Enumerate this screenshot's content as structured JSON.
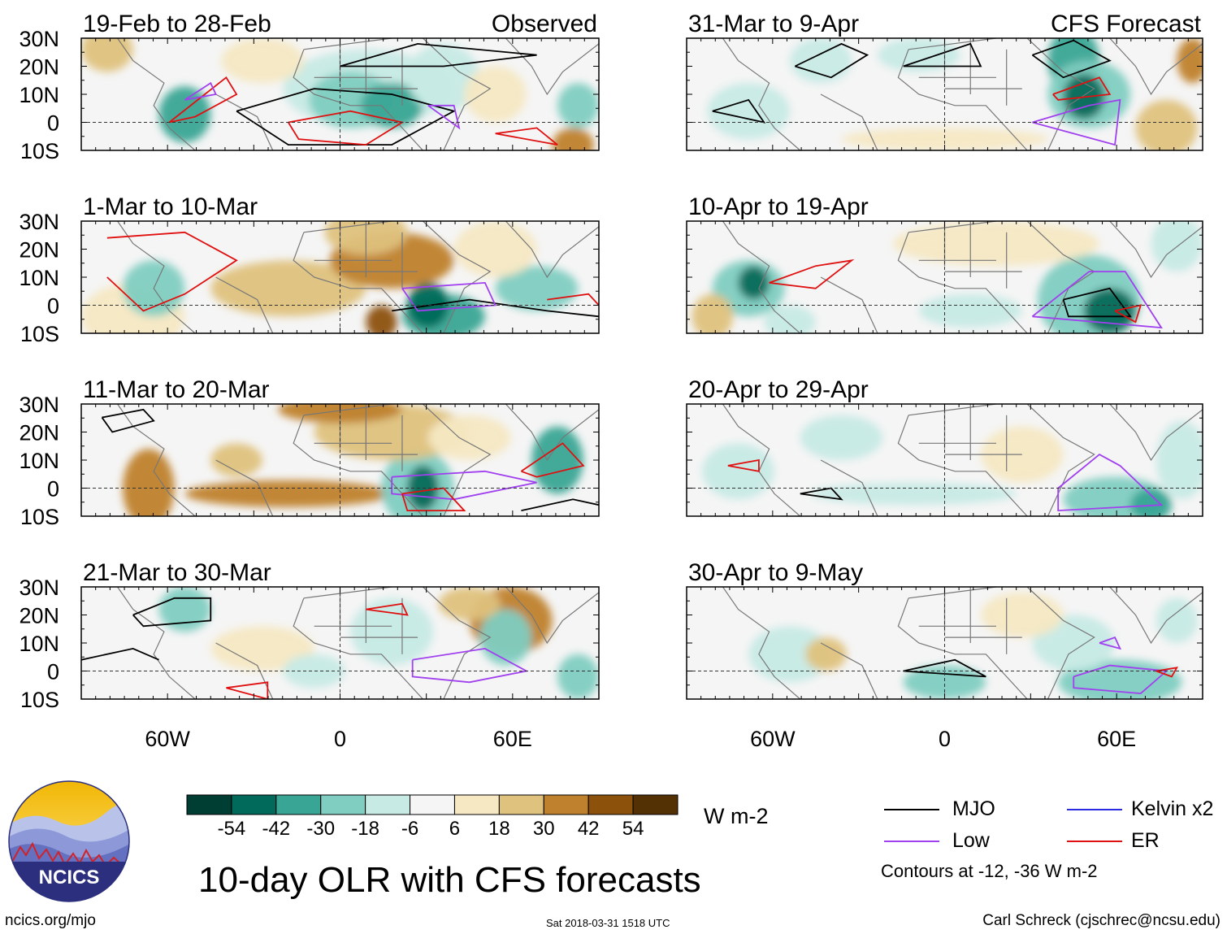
{
  "figure": {
    "title": "10-day OLR with CFS forecasts",
    "observed_label": "Observed",
    "forecast_label": "CFS Forecast",
    "latitude_labels": [
      "30N",
      "20N",
      "10N",
      "0",
      "10S"
    ],
    "longitude_labels": [
      "60W",
      "0",
      "60E"
    ]
  },
  "panels": {
    "observed": [
      {
        "period": "19-Feb to 28-Feb"
      },
      {
        "period": "1-Mar to 10-Mar"
      },
      {
        "period": "11-Mar to 20-Mar"
      },
      {
        "period": "21-Mar to 30-Mar"
      }
    ],
    "forecast": [
      {
        "period": "31-Mar to 9-Apr"
      },
      {
        "period": "10-Apr to 19-Apr"
      },
      {
        "period": "20-Apr to 29-Apr"
      },
      {
        "period": "30-Apr to 9-May"
      }
    ]
  },
  "colorbar": {
    "ticks": [
      "-54",
      "-42",
      "-30",
      "-18",
      "-6",
      "6",
      "18",
      "30",
      "42",
      "54"
    ],
    "colors": [
      "#003d33",
      "#016a5a",
      "#38a595",
      "#80cdc1",
      "#c7eae5",
      "#f5f5f5",
      "#f6e8c3",
      "#dfc27d",
      "#bf812d",
      "#8c510a",
      "#543005"
    ],
    "units": "W m-2"
  },
  "legend": {
    "items": [
      {
        "label": "MJO",
        "color": "#000000"
      },
      {
        "label": "Kelvin x2",
        "color": "#2a2ae0"
      },
      {
        "label": "Low",
        "color": "#a040ee"
      },
      {
        "label": "ER",
        "color": "#e01010"
      }
    ],
    "note": "Contours at -12, -36 W m-2"
  },
  "logo": {
    "text": "NCICS"
  },
  "footer": {
    "left": "ncics.org/mjo",
    "center": "Sat 2018-03-31 1518 UTC",
    "right": "Carl Schreck (cjschrec@ncsu.edu)"
  }
}
